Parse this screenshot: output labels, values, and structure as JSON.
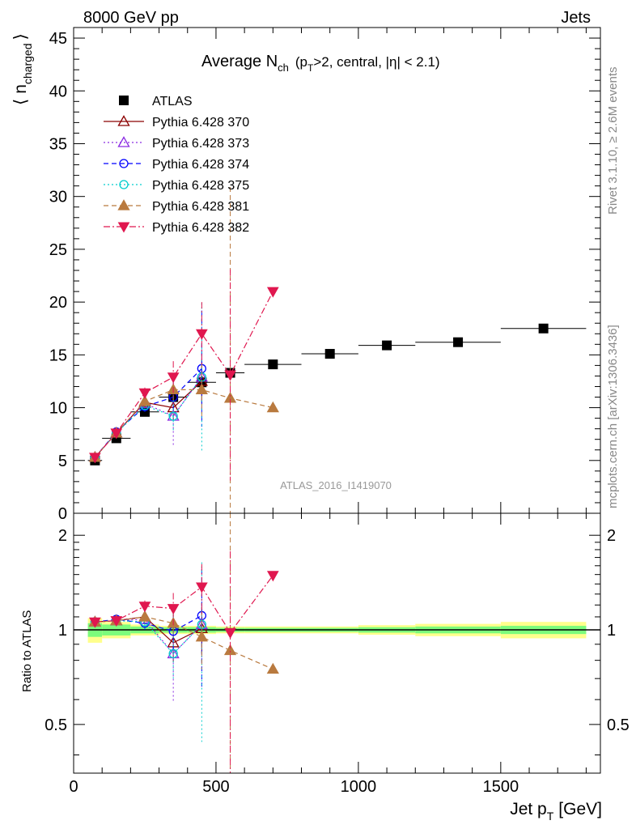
{
  "header": {
    "energy_label": "8000 GeV pp",
    "category_label": "Jets"
  },
  "side_labels": {
    "rivet": "Rivet 3.1.10, ≥ 2.6M events",
    "mcplots": "mcplots.cern.ch [arXiv:1306.3436]"
  },
  "colors": {
    "atlas": "#000000",
    "p370": "#8b0000",
    "p373": "#8a2be2",
    "p374": "#0000ff",
    "p375": "#00cdcd",
    "p381": "#b97a3f",
    "p382": "#e0174f",
    "band_inner": "#7cfc7c",
    "band_outer": "#ffff8c"
  },
  "chart_data": [
    {
      "type": "scatter",
      "title": "Average N_ch (p_T>2, central, |η| < 2.1)",
      "title_parts": {
        "main": "Average N",
        "sub_ch": "ch",
        "p": "(p",
        "sub_T": "T",
        "rest": ">2, central, |η| < 2.1)"
      },
      "ylabel": "⟨ n_charged ⟩",
      "ylabel_parts": {
        "bracket_l": "⟨",
        "n": "n",
        "sub": "charged",
        "bracket_r": "⟩"
      },
      "watermark": "ATLAS_2016_I1419070",
      "xlim": [
        0,
        1850
      ],
      "ylim": [
        0,
        46
      ],
      "yticks": [
        0,
        5,
        10,
        15,
        20,
        25,
        30,
        35,
        40,
        45
      ],
      "xticks_major": [
        0,
        500,
        1000,
        1500
      ],
      "legend_position": "top-left",
      "series": [
        {
          "name": "ATLAS",
          "key": "atlas",
          "marker": "square",
          "line": "none",
          "x": [
            75,
            150,
            250,
            350,
            450,
            550,
            700,
            900,
            1100,
            1350,
            1650
          ],
          "x_lo": [
            50,
            100,
            200,
            300,
            400,
            500,
            600,
            800,
            1000,
            1200,
            1500
          ],
          "x_hi": [
            100,
            200,
            300,
            400,
            500,
            600,
            800,
            1000,
            1200,
            1500,
            1800
          ],
          "y": [
            5.0,
            7.1,
            9.6,
            11.0,
            12.4,
            13.3,
            14.1,
            15.1,
            15.9,
            16.2,
            17.5
          ],
          "band_inner_frac": [
            0.05,
            0.04,
            0.025,
            0.02,
            0.02,
            0.015,
            0.015,
            0.015,
            0.02,
            0.025,
            0.03
          ],
          "band_outer_frac": [
            0.09,
            0.06,
            0.04,
            0.03,
            0.03,
            0.025,
            0.025,
            0.025,
            0.035,
            0.045,
            0.06
          ]
        },
        {
          "name": "Pythia 6.428 370",
          "key": "p370",
          "marker": "triangle-up-open",
          "line": "solid",
          "x": [
            75,
            150,
            250,
            350,
            450
          ],
          "y": [
            5.3,
            7.6,
            10.5,
            10.0,
            12.5
          ],
          "err": [
            0.2,
            0.3,
            0.5,
            1.2,
            2.0
          ]
        },
        {
          "name": "Pythia 6.428 373",
          "key": "p373",
          "marker": "triangle-up-open",
          "line": "dotted",
          "x": [
            75,
            150,
            250,
            350,
            450
          ],
          "y": [
            5.3,
            7.6,
            10.4,
            9.2,
            12.9
          ],
          "err": [
            0.2,
            0.3,
            0.6,
            2.8,
            3.0
          ]
        },
        {
          "name": "Pythia 6.428 374",
          "key": "p374",
          "marker": "circle-open",
          "line": "dashed",
          "x": [
            75,
            150,
            250,
            350,
            450
          ],
          "y": [
            5.3,
            7.7,
            10.1,
            11.0,
            13.7
          ],
          "err": [
            0.2,
            0.3,
            0.5,
            1.5,
            5.5
          ]
        },
        {
          "name": "Pythia 6.428 375",
          "key": "p375",
          "marker": "circle-open",
          "line": "dotted",
          "x": [
            75,
            150,
            250,
            350,
            450
          ],
          "y": [
            5.3,
            7.6,
            10.2,
            9.2,
            12.9
          ],
          "err": [
            0.2,
            0.3,
            0.5,
            1.5,
            7.0
          ]
        },
        {
          "name": "Pythia 6.428 381",
          "key": "p381",
          "marker": "triangle-up",
          "line": "dashed",
          "x": [
            75,
            150,
            250,
            350,
            450,
            550,
            700
          ],
          "y": [
            5.3,
            7.6,
            10.6,
            11.7,
            11.7,
            10.9,
            10.0
          ],
          "err": [
            0.2,
            0.3,
            0.5,
            1.0,
            2.5,
            20.0,
            0.3
          ]
        },
        {
          "name": "Pythia 6.428 382",
          "key": "p382",
          "marker": "triangle-down",
          "line": "dashdot",
          "x": [
            75,
            150,
            250,
            350,
            450,
            550,
            700
          ],
          "y": [
            5.3,
            7.6,
            11.4,
            12.9,
            17.0,
            13.1,
            21.0
          ],
          "err": [
            0.2,
            0.3,
            0.5,
            1.5,
            3.0,
            10.0,
            0.3
          ]
        }
      ]
    },
    {
      "type": "line",
      "ylabel": "Ratio to ATLAS",
      "xlabel": "Jet p_T [GeV]",
      "xlabel_parts": {
        "main": "Jet p",
        "sub": "T",
        "unit": "[GeV]"
      },
      "xlim": [
        0,
        1850
      ],
      "ylim": [
        0.35,
        2.35
      ],
      "ylog": true,
      "yticks": [
        0.5,
        1,
        2
      ],
      "ytick_labels": [
        "0.5",
        "1",
        "2"
      ],
      "xticks_major": [
        0,
        500,
        1000,
        1500
      ],
      "xtick_labels": [
        "0",
        "500",
        "1000",
        "1500"
      ],
      "reference_line": 1.0,
      "series": [
        {
          "name": "Pythia 6.428 370",
          "key": "p370",
          "x": [
            75,
            150,
            250,
            350,
            450
          ],
          "y": [
            1.06,
            1.07,
            1.1,
            0.91,
            1.01
          ],
          "err": [
            0.03,
            0.04,
            0.05,
            0.12,
            0.17
          ]
        },
        {
          "name": "Pythia 6.428 373",
          "key": "p373",
          "x": [
            75,
            150,
            250,
            350,
            450
          ],
          "y": [
            1.06,
            1.07,
            1.08,
            0.84,
            1.04
          ],
          "err": [
            0.03,
            0.04,
            0.06,
            0.25,
            0.25
          ]
        },
        {
          "name": "Pythia 6.428 374",
          "key": "p374",
          "x": [
            75,
            150,
            250,
            350,
            450
          ],
          "y": [
            1.06,
            1.08,
            1.05,
            0.99,
            1.11
          ],
          "err": [
            0.03,
            0.04,
            0.05,
            0.14,
            0.45
          ]
        },
        {
          "name": "Pythia 6.428 375",
          "key": "p375",
          "x": [
            75,
            150,
            250,
            350,
            450
          ],
          "y": [
            1.06,
            1.07,
            1.06,
            0.84,
            1.04
          ],
          "err": [
            0.03,
            0.04,
            0.05,
            0.14,
            0.6
          ]
        },
        {
          "name": "Pythia 6.428 381",
          "key": "p381",
          "x": [
            75,
            150,
            250,
            350,
            450,
            550,
            700
          ],
          "y": [
            1.06,
            1.07,
            1.1,
            1.05,
            0.95,
            0.86,
            0.75
          ],
          "err": [
            0.03,
            0.04,
            0.05,
            0.09,
            0.2,
            1.5,
            0.02
          ]
        },
        {
          "name": "Pythia 6.428 382",
          "key": "p382",
          "x": [
            75,
            150,
            250,
            350,
            450,
            550,
            700
          ],
          "y": [
            1.06,
            1.07,
            1.19,
            1.17,
            1.37,
            0.98,
            1.49
          ],
          "err": [
            0.03,
            0.04,
            0.05,
            0.14,
            0.25,
            0.8,
            0.02
          ]
        }
      ]
    }
  ]
}
